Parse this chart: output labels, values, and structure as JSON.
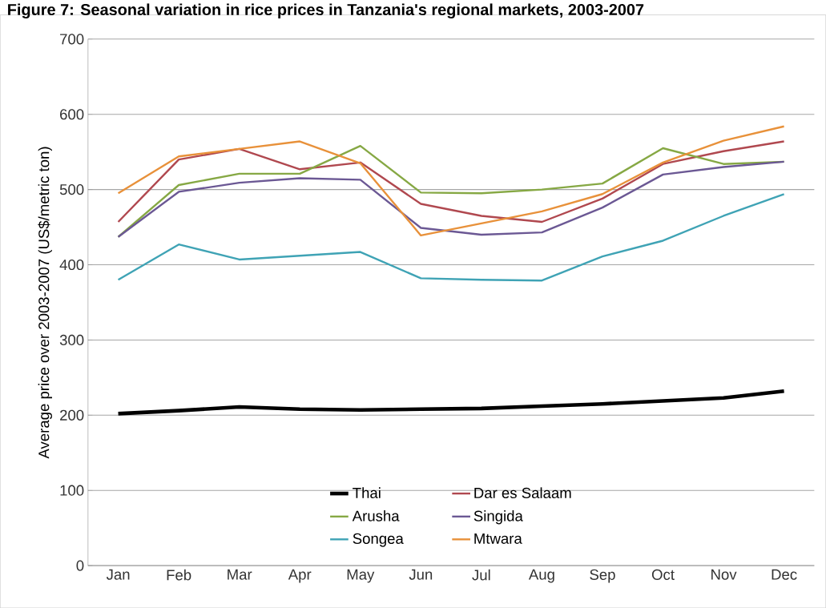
{
  "chart_data": {
    "type": "line",
    "title": "Figure 7: Seasonal variation in rice prices in Tanzania's regional markets, 2003-2007",
    "ylabel": "Average price over 2003-2007 (US$/metric ton)",
    "categories": [
      "Jan",
      "Feb",
      "Mar",
      "Apr",
      "May",
      "Jun",
      "Jul",
      "Aug",
      "Sep",
      "Oct",
      "Nov",
      "Dec"
    ],
    "series": [
      {
        "name": "Thai",
        "color": "#000000",
        "values": [
          202,
          206,
          211,
          208,
          207,
          208,
          209,
          212,
          215,
          219,
          223,
          232
        ]
      },
      {
        "name": "Dar es Salaam",
        "color": "#b0484f",
        "values": [
          457,
          540,
          554,
          527,
          536,
          481,
          465,
          457,
          488,
          534,
          551,
          564
        ]
      },
      {
        "name": "Arusha",
        "color": "#86a844",
        "values": [
          437,
          506,
          521,
          521,
          558,
          496,
          495,
          500,
          508,
          555,
          534,
          537
        ]
      },
      {
        "name": "Singida",
        "color": "#6b5894",
        "values": [
          437,
          497,
          509,
          515,
          513,
          449,
          440,
          443,
          476,
          520,
          530,
          537
        ]
      },
      {
        "name": "Songea",
        "color": "#3fa3b5",
        "values": [
          380,
          427,
          407,
          412,
          417,
          382,
          380,
          379,
          411,
          432,
          465,
          494
        ]
      },
      {
        "name": "Mtwara",
        "color": "#e8913a",
        "values": [
          495,
          544,
          554,
          564,
          535,
          439,
          455,
          471,
          494,
          536,
          565,
          584
        ]
      }
    ],
    "ylim": [
      0,
      700
    ],
    "yticks": [
      0,
      100,
      200,
      300,
      400,
      500,
      600,
      700
    ],
    "grid": "y",
    "legend": "bottom",
    "marker": "none",
    "line_style": "solid"
  }
}
